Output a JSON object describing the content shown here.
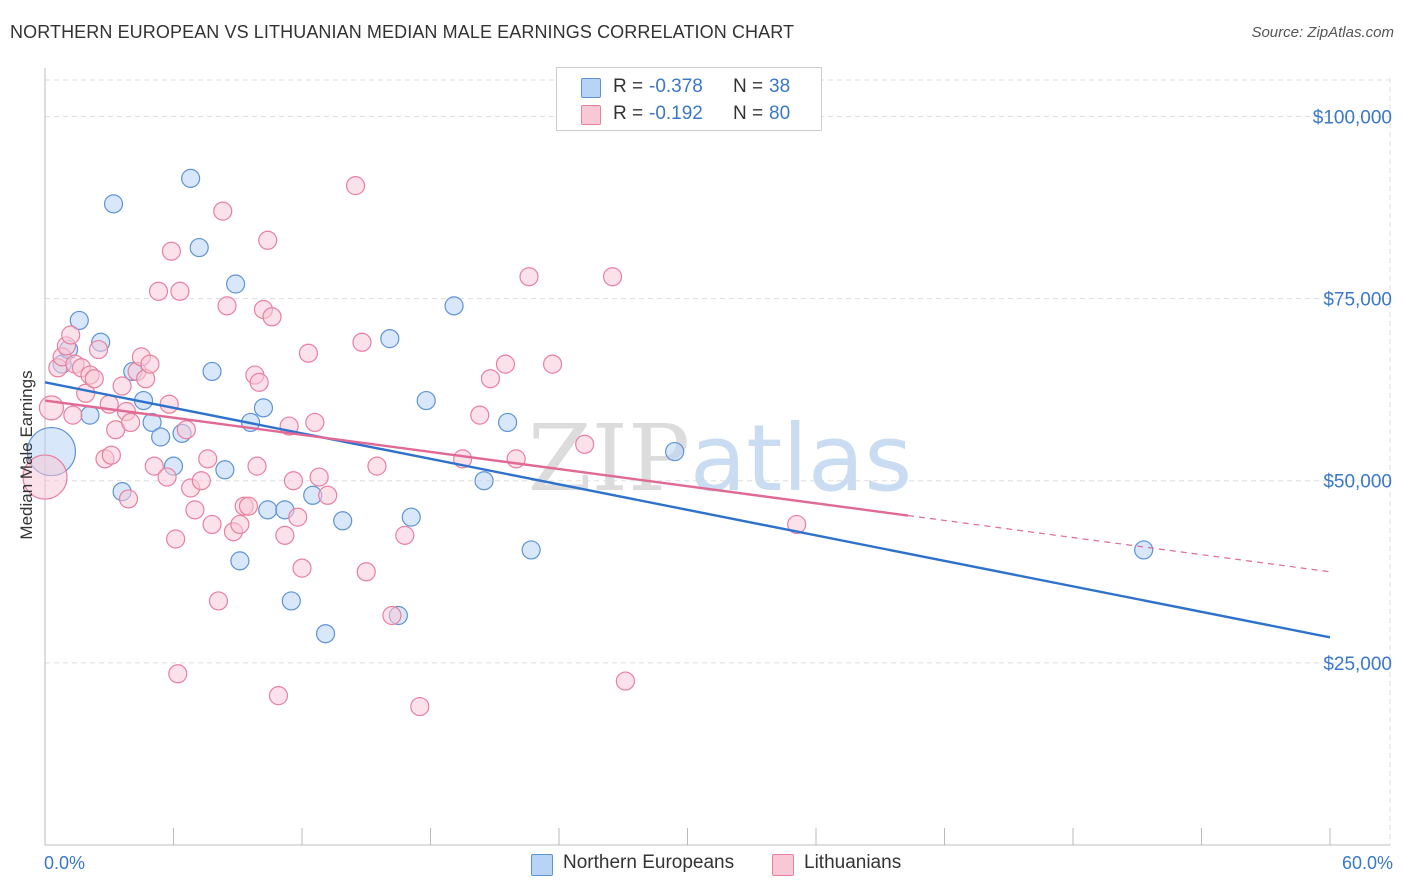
{
  "title": "NORTHERN EUROPEAN VS LITHUANIAN MEDIAN MALE EARNINGS CORRELATION CHART",
  "source": "Source: ZipAtlas.com",
  "watermark": "ZIPatlas",
  "colors": {
    "blue_fill": "#b8d4f5",
    "blue_stroke": "#5e93d6",
    "blue_line": "#2f72cc",
    "pink_fill": "#f8c8d7",
    "pink_stroke": "#e8809f",
    "pink_line": "#e06a94",
    "axis_text": "#3a78c9",
    "grid": "#dddddd"
  },
  "legend": {
    "r_label": "R =",
    "n_label": "N =",
    "series": [
      {
        "r": "-0.378",
        "n": "38"
      },
      {
        "r": "-0.192",
        "n": "80"
      }
    ]
  },
  "chart_data": {
    "type": "scatter",
    "title": "NORTHERN EUROPEAN VS LITHUANIAN MEDIAN MALE EARNINGS CORRELATION CHART",
    "xlabel": "",
    "ylabel": "Median Male Earnings",
    "xlim": [
      0,
      60
    ],
    "ylim": [
      0,
      105000
    ],
    "x_tick_labels": [
      "0.0%",
      "60.0%"
    ],
    "y_ticks": [
      25000,
      50000,
      75000,
      100000
    ],
    "y_tick_labels": [
      "$25,000",
      "$50,000",
      "$75,000",
      "$100,000"
    ],
    "series": [
      {
        "name": "Northern Europeans",
        "r": -0.378,
        "n": 38,
        "trend": {
          "x0": 0,
          "y0": 63500,
          "x1": 60,
          "y1": 28500,
          "dashed_from": null
        },
        "points": [
          [
            0.3,
            54000,
            24
          ],
          [
            0.8,
            66000,
            9
          ],
          [
            1.1,
            68000,
            9
          ],
          [
            1.6,
            72000,
            9
          ],
          [
            2.1,
            59000,
            9
          ],
          [
            2.6,
            69000,
            9
          ],
          [
            3.2,
            88000,
            9
          ],
          [
            3.6,
            48500,
            9
          ],
          [
            4.1,
            65000,
            9
          ],
          [
            4.6,
            61000,
            9
          ],
          [
            5.0,
            58000,
            9
          ],
          [
            5.4,
            56000,
            9
          ],
          [
            6.0,
            52000,
            9
          ],
          [
            6.4,
            56500,
            9
          ],
          [
            6.8,
            91500,
            9
          ],
          [
            7.2,
            82000,
            9
          ],
          [
            7.8,
            65000,
            9
          ],
          [
            8.4,
            51500,
            9
          ],
          [
            8.9,
            77000,
            9
          ],
          [
            9.1,
            39000,
            9
          ],
          [
            9.6,
            58000,
            9
          ],
          [
            10.2,
            60000,
            9
          ],
          [
            10.4,
            46000,
            9
          ],
          [
            11.2,
            46000,
            9
          ],
          [
            11.5,
            33500,
            9
          ],
          [
            12.5,
            48000,
            9
          ],
          [
            13.1,
            29000,
            9
          ],
          [
            13.9,
            44500,
            9
          ],
          [
            16.1,
            69500,
            9
          ],
          [
            16.5,
            31500,
            9
          ],
          [
            17.1,
            45000,
            9
          ],
          [
            17.8,
            61000,
            9
          ],
          [
            19.1,
            74000,
            9
          ],
          [
            20.5,
            50000,
            9
          ],
          [
            21.6,
            58000,
            9
          ],
          [
            22.7,
            40500,
            9
          ],
          [
            29.4,
            54000,
            9
          ],
          [
            51.3,
            40500,
            9
          ]
        ]
      },
      {
        "name": "Lithuanians",
        "r": -0.192,
        "n": 80,
        "trend": {
          "x0": 0,
          "y0": 61000,
          "x1": 60,
          "y1": 37500,
          "dashed_from": 40.3
        },
        "points": [
          [
            0.0,
            50500,
            22
          ],
          [
            0.3,
            60000,
            12
          ],
          [
            0.6,
            65500,
            9
          ],
          [
            0.8,
            67000,
            9
          ],
          [
            1.0,
            68500,
            9
          ],
          [
            1.2,
            70000,
            9
          ],
          [
            1.4,
            66000,
            9
          ],
          [
            1.7,
            65500,
            9
          ],
          [
            1.9,
            62000,
            9
          ],
          [
            2.1,
            64500,
            9
          ],
          [
            2.3,
            64000,
            9
          ],
          [
            2.5,
            68000,
            9
          ],
          [
            2.8,
            53000,
            9
          ],
          [
            3.0,
            60500,
            9
          ],
          [
            3.3,
            57000,
            9
          ],
          [
            3.6,
            63000,
            9
          ],
          [
            3.8,
            59500,
            9
          ],
          [
            3.9,
            47500,
            9
          ],
          [
            4.0,
            58000,
            9
          ],
          [
            4.3,
            65000,
            9
          ],
          [
            4.5,
            67000,
            9
          ],
          [
            4.7,
            64000,
            9
          ],
          [
            4.9,
            66000,
            9
          ],
          [
            5.1,
            52000,
            9
          ],
          [
            5.3,
            76000,
            9
          ],
          [
            5.7,
            50500,
            9
          ],
          [
            5.9,
            81500,
            9
          ],
          [
            6.1,
            42000,
            9
          ],
          [
            6.3,
            76000,
            9
          ],
          [
            6.6,
            57000,
            9
          ],
          [
            6.8,
            49000,
            9
          ],
          [
            7.0,
            46000,
            9
          ],
          [
            7.3,
            50000,
            9
          ],
          [
            7.6,
            53000,
            9
          ],
          [
            7.8,
            44000,
            9
          ],
          [
            8.1,
            33500,
            9
          ],
          [
            8.3,
            87000,
            9
          ],
          [
            8.5,
            74000,
            9
          ],
          [
            8.8,
            43000,
            9
          ],
          [
            9.1,
            44000,
            9
          ],
          [
            9.3,
            46500,
            9
          ],
          [
            9.5,
            46500,
            9
          ],
          [
            9.8,
            64500,
            9
          ],
          [
            10.0,
            63500,
            9
          ],
          [
            10.2,
            73500,
            9
          ],
          [
            10.4,
            83000,
            9
          ],
          [
            10.6,
            72500,
            9
          ],
          [
            10.9,
            20500,
            9
          ],
          [
            11.2,
            42500,
            9
          ],
          [
            11.6,
            50000,
            9
          ],
          [
            11.8,
            45000,
            9
          ],
          [
            12.0,
            38000,
            9
          ],
          [
            12.3,
            67500,
            9
          ],
          [
            12.6,
            58000,
            9
          ],
          [
            12.8,
            50500,
            9
          ],
          [
            13.2,
            48000,
            9
          ],
          [
            14.5,
            90500,
            9
          ],
          [
            14.8,
            69000,
            9
          ],
          [
            15.0,
            37500,
            9
          ],
          [
            15.5,
            52000,
            9
          ],
          [
            16.2,
            31500,
            9
          ],
          [
            16.8,
            42500,
            9
          ],
          [
            17.5,
            19000,
            9
          ],
          [
            19.5,
            53000,
            9
          ],
          [
            20.3,
            59000,
            9
          ],
          [
            20.8,
            64000,
            9
          ],
          [
            21.5,
            66000,
            9
          ],
          [
            22.0,
            53000,
            9
          ],
          [
            22.6,
            78000,
            9
          ],
          [
            23.7,
            66000,
            9
          ],
          [
            25.2,
            55000,
            9
          ],
          [
            26.5,
            78000,
            9
          ],
          [
            27.1,
            22500,
            9
          ],
          [
            35.1,
            44000,
            9
          ],
          [
            6.2,
            23500,
            9
          ],
          [
            1.3,
            59000,
            9
          ],
          [
            3.1,
            53500,
            9
          ],
          [
            5.8,
            60500,
            9
          ],
          [
            11.4,
            57500,
            9
          ],
          [
            9.9,
            52000,
            9
          ]
        ]
      }
    ]
  }
}
